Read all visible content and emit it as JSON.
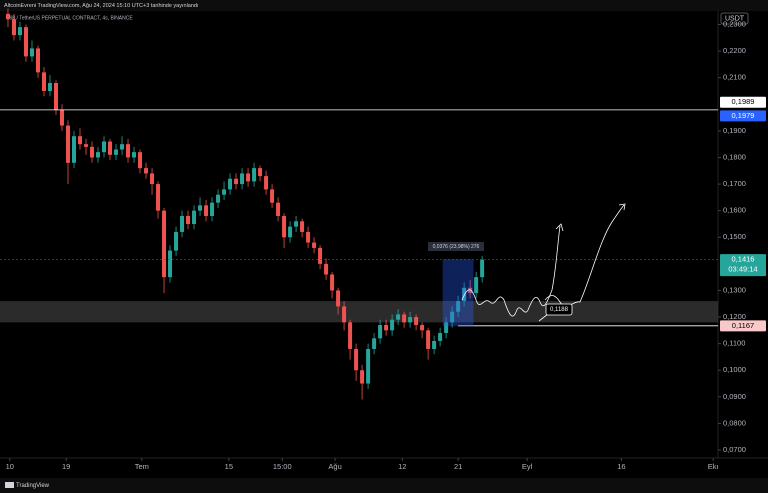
{
  "header": {
    "attribution": "AltcoinEvreni TradingView.com, Ağu 24, 2024 15:10 UTC+3 tarihinde yayınlandı",
    "logo": "TradingView"
  },
  "chart_data": {
    "type": "candlestick",
    "title": "C98 / TetherUS PERPETUAL CONTRACT, 4s, BINANCE",
    "currency": "USDT",
    "up_color": "#26a69a",
    "down_color": "#ef5350",
    "ylim": [
      0.067,
      0.2347
    ],
    "yticks": [
      {
        "value": 0.23,
        "label": "0,2300"
      },
      {
        "value": 0.22,
        "label": "0,2200"
      },
      {
        "value": 0.21,
        "label": "0,2100"
      },
      {
        "value": 0.19,
        "label": "0,1900"
      },
      {
        "value": 0.18,
        "label": "0,1800"
      },
      {
        "value": 0.17,
        "label": "0,1700"
      },
      {
        "value": 0.16,
        "label": "0,1600"
      },
      {
        "value": 0.15,
        "label": "0,1500"
      },
      {
        "value": 0.13,
        "label": "0,1300"
      },
      {
        "value": 0.12,
        "label": "0,1200"
      },
      {
        "value": 0.11,
        "label": "0,1100"
      },
      {
        "value": 0.1,
        "label": "0,1000"
      },
      {
        "value": 0.09,
        "label": "0,0900"
      },
      {
        "value": 0.08,
        "label": "0,0800"
      },
      {
        "value": 0.07,
        "label": "0,0700"
      }
    ],
    "xlim": [
      -1.33,
      118.3
    ],
    "xticks": [
      {
        "value": 0.3,
        "label": "10"
      },
      {
        "value": 9.7,
        "label": "19"
      },
      {
        "value": 22.3,
        "label": "Tem"
      },
      {
        "value": 36.8,
        "label": "15"
      },
      {
        "value": 45.7,
        "label": "15:00"
      },
      {
        "value": 54.5,
        "label": "Ağu"
      },
      {
        "value": 65.7,
        "label": "12"
      },
      {
        "value": 75,
        "label": "21"
      },
      {
        "value": 86.5,
        "label": "Eyl"
      },
      {
        "value": 102.2,
        "label": "16"
      },
      {
        "value": 117.5,
        "label": "Ekı"
      }
    ],
    "open": [
      0.234,
      0.232,
      0.226,
      0.229,
      0.218,
      0.221,
      0.212,
      0.205,
      0.208,
      0.198,
      0.192,
      0.178,
      0.188,
      0.185,
      0.184,
      0.18,
      0.182,
      0.186,
      0.181,
      0.183,
      0.185,
      0.18,
      0.182,
      0.176,
      0.174,
      0.17,
      0.16,
      0.135,
      0.145,
      0.152,
      0.158,
      0.155,
      0.16,
      0.162,
      0.158,
      0.163,
      0.166,
      0.168,
      0.172,
      0.17,
      0.174,
      0.171,
      0.176,
      0.173,
      0.168,
      0.163,
      0.158,
      0.15,
      0.154,
      0.156,
      0.152,
      0.148,
      0.146,
      0.14,
      0.136,
      0.13,
      0.124,
      0.118,
      0.108,
      0.1,
      0.095,
      0.108,
      0.112,
      0.117,
      0.115,
      0.119,
      0.121,
      0.118,
      0.12,
      0.117,
      0.115,
      0.108,
      0.111,
      0.114,
      0.118,
      0.122,
      0.126,
      0.131,
      0.129,
      0.135
    ],
    "high": [
      0.236,
      0.234,
      0.231,
      0.23,
      0.224,
      0.222,
      0.214,
      0.211,
      0.209,
      0.2,
      0.194,
      0.19,
      0.191,
      0.187,
      0.186,
      0.184,
      0.188,
      0.187,
      0.185,
      0.188,
      0.187,
      0.184,
      0.183,
      0.178,
      0.176,
      0.171,
      0.161,
      0.147,
      0.154,
      0.16,
      0.16,
      0.162,
      0.165,
      0.164,
      0.165,
      0.168,
      0.171,
      0.174,
      0.174,
      0.176,
      0.176,
      0.178,
      0.177,
      0.175,
      0.17,
      0.165,
      0.159,
      0.156,
      0.158,
      0.157,
      0.154,
      0.15,
      0.147,
      0.142,
      0.137,
      0.131,
      0.126,
      0.119,
      0.11,
      0.102,
      0.11,
      0.114,
      0.119,
      0.119,
      0.121,
      0.123,
      0.122,
      0.122,
      0.121,
      0.118,
      0.116,
      0.113,
      0.116,
      0.12,
      0.124,
      0.128,
      0.133,
      0.134,
      0.137,
      0.143
    ],
    "low": [
      0.229,
      0.224,
      0.224,
      0.216,
      0.216,
      0.21,
      0.203,
      0.203,
      0.196,
      0.19,
      0.17,
      0.176,
      0.183,
      0.181,
      0.178,
      0.178,
      0.18,
      0.179,
      0.179,
      0.181,
      0.178,
      0.178,
      0.174,
      0.172,
      0.166,
      0.157,
      0.129,
      0.133,
      0.143,
      0.15,
      0.153,
      0.153,
      0.158,
      0.156,
      0.156,
      0.161,
      0.164,
      0.166,
      0.168,
      0.168,
      0.169,
      0.169,
      0.171,
      0.166,
      0.161,
      0.156,
      0.146,
      0.148,
      0.152,
      0.15,
      0.146,
      0.144,
      0.138,
      0.134,
      0.127,
      0.121,
      0.115,
      0.104,
      0.096,
      0.089,
      0.093,
      0.106,
      0.11,
      0.113,
      0.113,
      0.117,
      0.116,
      0.116,
      0.115,
      0.112,
      0.104,
      0.106,
      0.109,
      0.112,
      0.116,
      0.12,
      0.124,
      0.127,
      0.127,
      0.133
    ],
    "close": [
      0.232,
      0.226,
      0.229,
      0.218,
      0.221,
      0.212,
      0.205,
      0.208,
      0.198,
      0.192,
      0.178,
      0.188,
      0.185,
      0.184,
      0.18,
      0.182,
      0.186,
      0.181,
      0.183,
      0.185,
      0.18,
      0.182,
      0.176,
      0.174,
      0.17,
      0.16,
      0.135,
      0.145,
      0.152,
      0.158,
      0.155,
      0.16,
      0.162,
      0.158,
      0.163,
      0.166,
      0.168,
      0.172,
      0.17,
      0.174,
      0.171,
      0.176,
      0.173,
      0.168,
      0.163,
      0.158,
      0.15,
      0.154,
      0.156,
      0.152,
      0.148,
      0.146,
      0.14,
      0.136,
      0.13,
      0.124,
      0.118,
      0.108,
      0.1,
      0.095,
      0.108,
      0.112,
      0.117,
      0.115,
      0.119,
      0.121,
      0.118,
      0.12,
      0.117,
      0.115,
      0.108,
      0.111,
      0.114,
      0.118,
      0.122,
      0.126,
      0.131,
      0.129,
      0.135,
      0.1416
    ],
    "zone": {
      "low": 0.118,
      "high": 0.126
    },
    "price_labels": [
      {
        "value": 0.1989,
        "label": "0,1989",
        "color": "#ffffff",
        "text_color": "#000000"
      },
      {
        "value": 0.1979,
        "label": "0,1979",
        "color": "#2962ff",
        "text_color": "#ffffff"
      },
      {
        "value": 0.1416,
        "label": "0,1416",
        "color": "#26a69a",
        "text_color": "#ffffff"
      },
      {
        "value": 0.1167,
        "label": "0,1167",
        "color": "#f8c9c8",
        "text_color": "#000000"
      }
    ],
    "countdown": "03:49:14",
    "measure": "0,0376 (23,98%) 276",
    "note": "0,1188"
  }
}
